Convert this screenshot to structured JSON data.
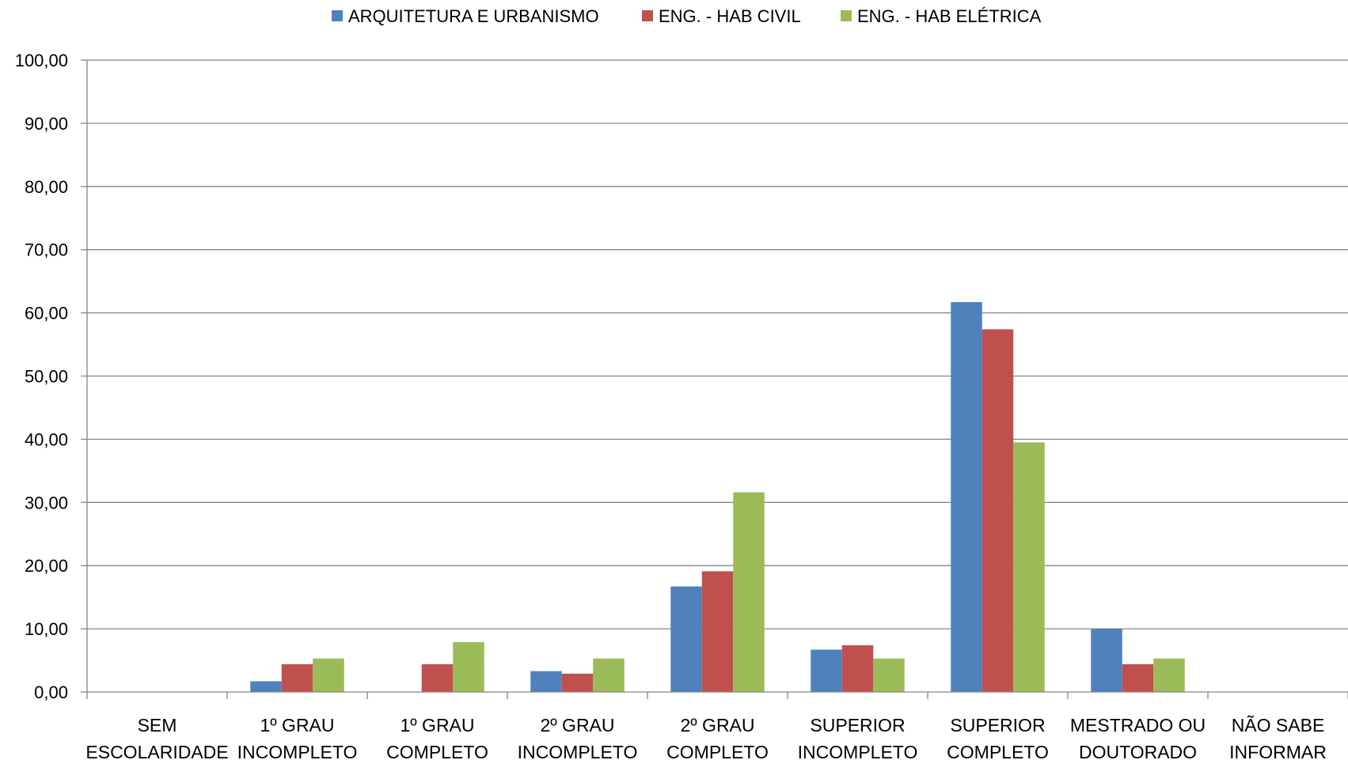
{
  "chart_data": {
    "type": "bar",
    "categories": [
      [
        "SEM",
        "ESCOLARIDADE"
      ],
      [
        "1º GRAU",
        "INCOMPLETO"
      ],
      [
        "1º GRAU",
        "COMPLETO"
      ],
      [
        "2º GRAU",
        "INCOMPLETO"
      ],
      [
        "2º GRAU",
        "COMPLETO"
      ],
      [
        "SUPERIOR",
        "INCOMPLETO"
      ],
      [
        "SUPERIOR",
        "COMPLETO"
      ],
      [
        "MESTRADO OU",
        "DOUTORADO"
      ],
      [
        "NÃO SABE",
        "INFORMAR"
      ]
    ],
    "series": [
      {
        "name": "ARQUITETURA E URBANISMO",
        "color": "#4F81BD",
        "values": [
          0,
          1.7,
          0,
          3.3,
          16.7,
          6.7,
          61.7,
          10.0,
          0
        ]
      },
      {
        "name": "ENG. - HAB CIVIL",
        "color": "#C0504D",
        "values": [
          0,
          4.4,
          4.4,
          2.9,
          19.1,
          7.4,
          57.4,
          4.4,
          0
        ]
      },
      {
        "name": "ENG. - HAB ELÉTRICA",
        "color": "#9BBB59",
        "values": [
          0,
          5.3,
          7.9,
          5.3,
          31.6,
          5.3,
          39.5,
          5.3,
          0
        ]
      }
    ],
    "yticks": [
      "0,00",
      "10,00",
      "20,00",
      "30,00",
      "40,00",
      "50,00",
      "60,00",
      "70,00",
      "80,00",
      "90,00",
      "100,00"
    ],
    "ylim": [
      0,
      100
    ],
    "grid": true,
    "legend_position": "top"
  }
}
